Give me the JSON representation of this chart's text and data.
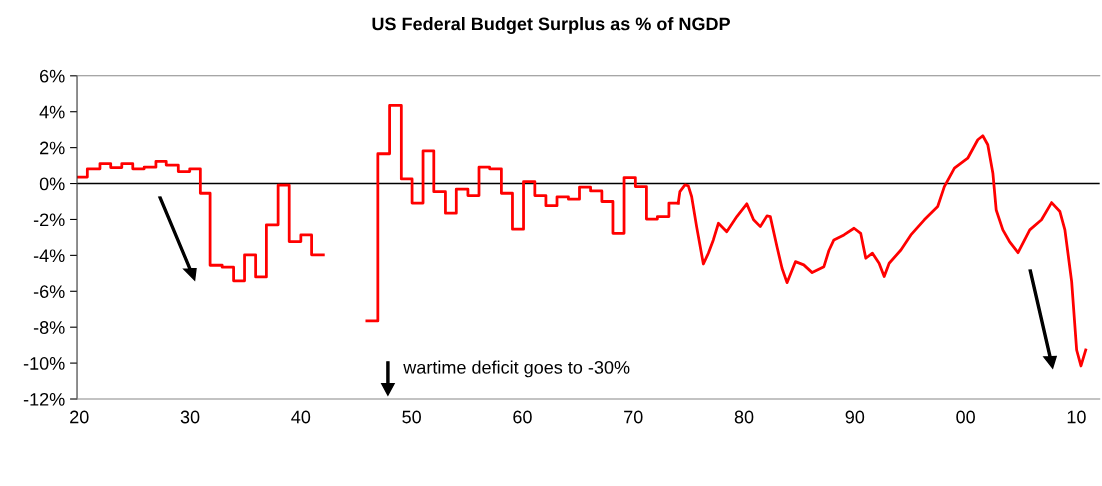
{
  "chart_data": {
    "type": "step",
    "title": "US Federal Budget Surplus as % of NGDP",
    "annotations": [
      "wartime deficit goes to -30%"
    ],
    "xlim": [
      1919.8,
      2012.1
    ],
    "xticks": [
      {
        "value": 1920,
        "label": "20"
      },
      {
        "value": 1930,
        "label": "30"
      },
      {
        "value": 1940,
        "label": "40"
      },
      {
        "value": 1950,
        "label": "50"
      },
      {
        "value": 1960,
        "label": "60"
      },
      {
        "value": 1970,
        "label": "70"
      },
      {
        "value": 1980,
        "label": "80"
      },
      {
        "value": 1990,
        "label": "90"
      },
      {
        "value": 2000,
        "label": "00"
      },
      {
        "value": 2010,
        "label": "10"
      }
    ],
    "ylim": [
      -12,
      6
    ],
    "yticks": [
      {
        "value": -12,
        "label": "-12%"
      },
      {
        "value": -10,
        "label": "-10%"
      },
      {
        "value": -8,
        "label": "-8%"
      },
      {
        "value": -6,
        "label": "-6%"
      },
      {
        "value": -4,
        "label": "-4%"
      },
      {
        "value": -2,
        "label": "-2%"
      },
      {
        "value": 0,
        "label": "0%"
      },
      {
        "value": 2,
        "label": "2%"
      },
      {
        "value": 4,
        "label": "4%"
      },
      {
        "value": 6,
        "label": "6%"
      }
    ],
    "grid": false,
    "legend": false,
    "ref_lines": [
      {
        "axis": "y",
        "value": 0,
        "color": "#000000"
      }
    ],
    "series": [
      {
        "color": "#ff0000",
        "x": [
          1919.8,
          1920.73,
          1921.87,
          1922.84,
          1923.84,
          1924.83,
          1925.86,
          1926.92,
          1927.85,
          1928.94,
          1929.97,
          1930.93,
          1931.81,
          1932.9,
          1933.93,
          1934.92,
          1935.92,
          1936.89,
          1937.95,
          1938.95,
          1940.0,
          1940.97,
          1942.03,
          1945.96,
          1946.95,
          1948.01,
          1949.07,
          1950.04,
          1951.03,
          1952.0,
          1953.05,
          1954.03,
          1955.08,
          1956.08,
          1957.04,
          1958.1,
          1959.1,
          1960.1,
          1961.12,
          1962.12,
          1963.12,
          1964.15,
          1965.15,
          1966.15,
          1967.17,
          1968.17,
          1969.17,
          1970.19,
          1971.19,
          1972.18,
          1973.22,
          1974.06
        ],
        "values": [
          0.36,
          0.82,
          1.11,
          0.89,
          1.11,
          0.82,
          0.91,
          1.23,
          1.03,
          0.67,
          0.82,
          -0.54,
          -4.55,
          -4.66,
          -5.42,
          -3.97,
          -5.2,
          -2.3,
          -0.09,
          -3.23,
          -2.86,
          -3.97,
          null,
          -7.65,
          1.66,
          4.35,
          0.26,
          -1.09,
          1.82,
          -0.45,
          -1.65,
          -0.31,
          -0.67,
          0.91,
          0.82,
          -0.54,
          -2.54,
          0.11,
          -0.67,
          -1.23,
          -0.74,
          -0.87,
          -0.2,
          -0.41,
          -1.0,
          -2.77,
          0.33,
          -0.17,
          -1.98,
          -1.84,
          -1.09,
          -1.09
        ]
      },
      {
        "type": "line",
        "color": "#ff0000",
        "x": [
          1974.06,
          1974.21,
          1974.67,
          1974.97,
          1975.27,
          1975.72,
          1976.33,
          1976.78,
          1977.23,
          1977.69,
          1978.44,
          1979.35,
          1980.25,
          1980.86,
          1981.47,
          1982.07,
          1982.37,
          1982.97,
          1983.43,
          1983.88,
          1984.64,
          1985.39,
          1986.15,
          1987.21,
          1987.66,
          1988.11,
          1989.02,
          1989.93,
          1990.53,
          1990.99,
          1991.59,
          1992.19,
          1992.65,
          1993.1,
          1994.16,
          1995.06,
          1996.27,
          1997.48,
          1998.08,
          1998.99,
          2000.19,
          2001.1,
          2001.55,
          2002.0,
          2002.46,
          2002.76,
          2003.36,
          2003.96,
          2004.73,
          2005.79,
          2006.85,
          2007.76,
          2008.51,
          2008.96,
          2009.57,
          2010.02,
          2010.41,
          2010.84
        ],
        "values": [
          -1.09,
          -0.45,
          -0.07,
          -0.13,
          -0.72,
          -2.4,
          -4.48,
          -3.88,
          -3.14,
          -2.21,
          -2.68,
          -1.84,
          -1.13,
          -2.02,
          -2.4,
          -1.8,
          -1.84,
          -3.51,
          -4.72,
          -5.52,
          -4.35,
          -4.53,
          -4.96,
          -4.63,
          -3.73,
          -3.14,
          -2.86,
          -2.49,
          -2.77,
          -4.16,
          -3.88,
          -4.44,
          -5.18,
          -4.44,
          -3.7,
          -2.86,
          -2.02,
          -1.28,
          -0.17,
          0.86,
          1.41,
          2.44,
          2.66,
          2.16,
          0.58,
          -1.47,
          -2.58,
          -3.23,
          -3.85,
          -2.58,
          -2.02,
          -1.06,
          -1.56,
          -2.58,
          -5.46,
          -9.27,
          -10.16,
          -9.27
        ]
      }
    ]
  }
}
